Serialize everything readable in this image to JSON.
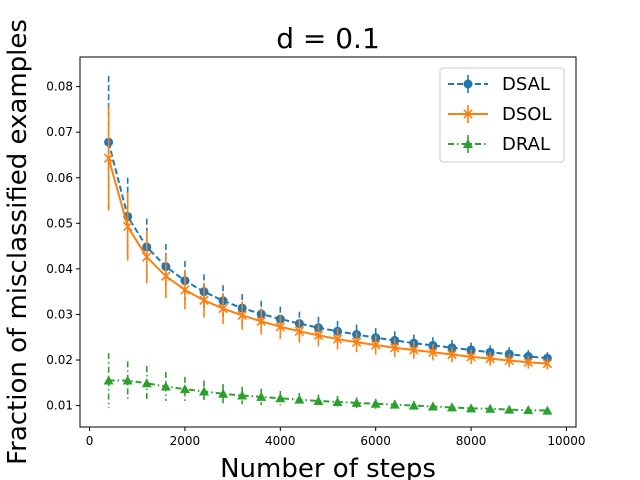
{
  "chart_data": {
    "type": "line",
    "title": "d = 0.1",
    "xlabel": "Number of steps",
    "ylabel": "Fraction of misclassified examples",
    "xlim": [
      -200,
      10200
    ],
    "ylim": [
      0.0053,
      0.0865
    ],
    "xticks": [
      0,
      2000,
      4000,
      6000,
      8000,
      10000
    ],
    "xtick_labels": [
      "0",
      "2000",
      "4000",
      "6000",
      "8000",
      "10000"
    ],
    "yticks": [
      0.01,
      0.02,
      0.03,
      0.04,
      0.05,
      0.06,
      0.07,
      0.08
    ],
    "ytick_labels": [
      "0.01",
      "0.02",
      "0.03",
      "0.04",
      "0.05",
      "0.06",
      "0.07",
      "0.08"
    ],
    "grid": false,
    "legend_position": "top-right",
    "x": [
      400,
      800,
      1200,
      1600,
      2000,
      2400,
      2800,
      3200,
      3600,
      4000,
      4400,
      4800,
      5200,
      5600,
      6000,
      6400,
      6800,
      7200,
      7600,
      8000,
      8400,
      8800,
      9200,
      9600
    ],
    "series": [
      {
        "name": "DSAL",
        "color": "#1f77b4",
        "line_style": "dashed",
        "marker": "circle",
        "values": [
          0.0678,
          0.0515,
          0.0448,
          0.0405,
          0.0374,
          0.035,
          0.033,
          0.0314,
          0.0301,
          0.029,
          0.028,
          0.0271,
          0.0263,
          0.0256,
          0.0249,
          0.0243,
          0.0237,
          0.0232,
          0.0227,
          0.0222,
          0.0217,
          0.0213,
          0.0208,
          0.0204
        ],
        "errors": [
          0.0145,
          0.0085,
          0.0062,
          0.005,
          0.0043,
          0.0038,
          0.0034,
          0.0031,
          0.0029,
          0.0027,
          0.0026,
          0.0024,
          0.0023,
          0.0022,
          0.0021,
          0.002,
          0.0019,
          0.0018,
          0.0017,
          0.0016,
          0.0015,
          0.0015,
          0.0014,
          0.0013
        ]
      },
      {
        "name": "DSOL",
        "color": "#ff7f0e",
        "line_style": "solid",
        "marker": "x",
        "values": [
          0.0643,
          0.0493,
          0.0426,
          0.0384,
          0.0354,
          0.0331,
          0.0313,
          0.0298,
          0.0285,
          0.0273,
          0.0263,
          0.0254,
          0.0246,
          0.0239,
          0.0233,
          0.0227,
          0.0222,
          0.0217,
          0.0212,
          0.0207,
          0.0203,
          0.0199,
          0.0195,
          0.0192
        ],
        "errors": [
          0.0115,
          0.0075,
          0.0058,
          0.0048,
          0.0042,
          0.0038,
          0.0034,
          0.0031,
          0.0029,
          0.0027,
          0.0025,
          0.0024,
          0.0023,
          0.0022,
          0.0021,
          0.002,
          0.0019,
          0.0018,
          0.0017,
          0.0016,
          0.0015,
          0.0015,
          0.0014,
          0.0013
        ]
      },
      {
        "name": "DRAL",
        "color": "#2ca02c",
        "line_style": "dashdot",
        "marker": "triangle-up",
        "values": [
          0.0155,
          0.0155,
          0.0149,
          0.0142,
          0.0136,
          0.0131,
          0.0126,
          0.0122,
          0.0119,
          0.0116,
          0.0113,
          0.011,
          0.0108,
          0.0106,
          0.0104,
          0.0102,
          0.01,
          0.0098,
          0.0096,
          0.0094,
          0.0093,
          0.0091,
          0.009,
          0.0089
        ],
        "errors": [
          0.006,
          0.0042,
          0.0038,
          0.0032,
          0.0027,
          0.0024,
          0.0021,
          0.0019,
          0.0018,
          0.0016,
          0.0015,
          0.0014,
          0.0013,
          0.0012,
          0.0011,
          0.001,
          0.001,
          0.0009,
          0.0009,
          0.0008,
          0.0008,
          0.0007,
          0.0007,
          0.0007
        ]
      }
    ]
  }
}
